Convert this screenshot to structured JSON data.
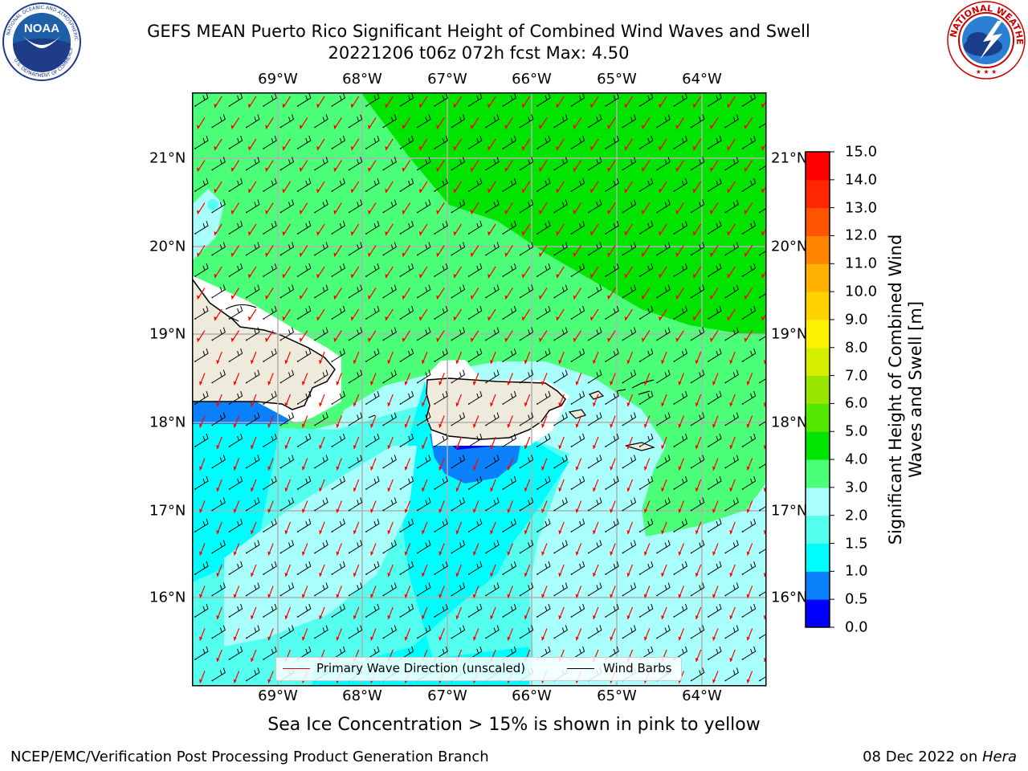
{
  "header": {
    "title_line1": "GEFS MEAN Puerto Rico Significant Height of Combined Wind Waves and Swell",
    "title_line2": "20221206 t06z 072h fcst   Max: 4.50"
  },
  "logos": {
    "left": {
      "name": "noaa-logo",
      "text": "NOAA"
    },
    "right": {
      "name": "national-weather-service-logo",
      "text": "NATIONAL WEATHER SERVICE"
    }
  },
  "map": {
    "lon_labels": [
      "69°W",
      "68°W",
      "67°W",
      "66°W",
      "65°W",
      "64°W"
    ],
    "lat_labels": [
      "21°N",
      "20°N",
      "19°N",
      "18°N",
      "17°N",
      "16°N"
    ],
    "land_color": "#efebdc",
    "colors": {
      "green_4_5": "#00e400",
      "green_3_4": "#4cff78",
      "cyan_2_3": "#a8fffc",
      "cyan_15_2": "#55fff0",
      "cyan_1_15": "#00fdfd",
      "blue_05_1": "#0a80fb",
      "blue_0_05": "#0000fa"
    },
    "wave_arrow_color": "#ff0000",
    "wind_barb_color": "#000000"
  },
  "legend": {
    "wave_label": "Primary Wave Direction (unscaled)",
    "barb_label": "Wind Barbs"
  },
  "colorbar": {
    "title": "Significant Height of Combined Wind Waves and Swell [m]",
    "ticks": [
      "0.0",
      "0.5",
      "1.0",
      "1.5",
      "2.0",
      "3.0",
      "4.0",
      "5.0",
      "6.0",
      "7.0",
      "8.0",
      "9.0",
      "10.0",
      "11.0",
      "12.0",
      "13.0",
      "14.0",
      "15.0"
    ],
    "colors": [
      "#0000ff",
      "#0a80fb",
      "#00fdfd",
      "#55fff0",
      "#a8fffc",
      "#4cff78",
      "#00e400",
      "#55e800",
      "#99e600",
      "#d6ee00",
      "#fff200",
      "#ffd200",
      "#ffb100",
      "#ff8500",
      "#ff5400",
      "#ff2800",
      "#ff0000"
    ]
  },
  "footer": {
    "subtitle": "Sea Ice Concentration > 15% is shown in pink to yellow",
    "left": "NCEP/EMC/Verification Post Processing Product Generation Branch",
    "right_date": "08 Dec 2022 on ",
    "right_machine": "Hera"
  }
}
